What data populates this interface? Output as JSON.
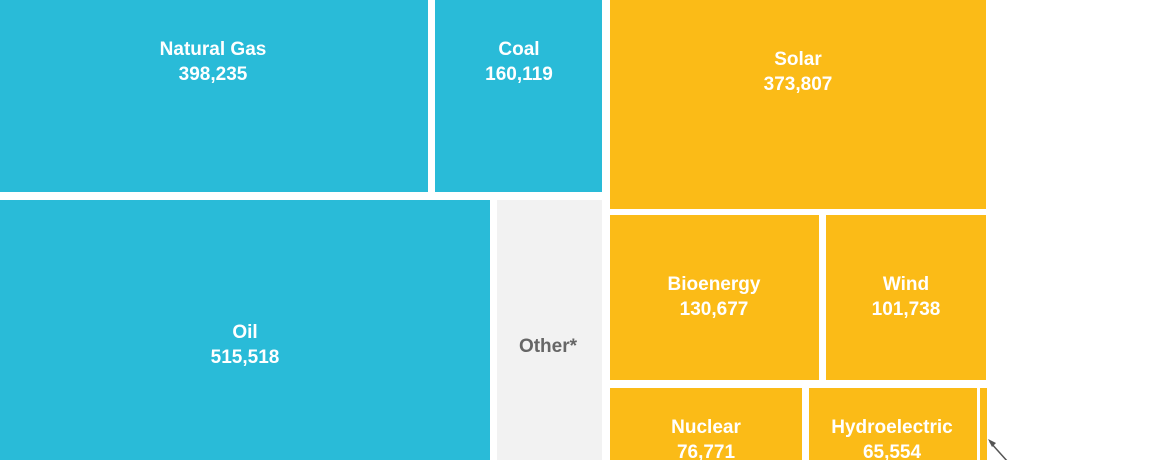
{
  "chart_data": {
    "type": "treemap",
    "categories": [
      "Natural Gas",
      "Coal",
      "Oil",
      "Other*",
      "Solar",
      "Bioenergy",
      "Wind",
      "Nuclear",
      "Hydroelectric",
      null
    ],
    "values": [
      398235,
      160119,
      515518,
      110000,
      373807,
      130677,
      101738,
      76771,
      65554,
      2700
    ],
    "value_labels": [
      "398,235",
      "160,119",
      "515,518",
      null,
      "373,807",
      "130,677",
      "101,738",
      "76,771",
      "65,554",
      null
    ],
    "colors": [
      "#29bbd8",
      "#29bbd8",
      "#29bbd8",
      "#f2f2f2",
      "#fbbb17",
      "#fbbb17",
      "#fbbb17",
      "#fbbb17",
      "#fbbb17",
      "#fbbb17"
    ]
  }
}
